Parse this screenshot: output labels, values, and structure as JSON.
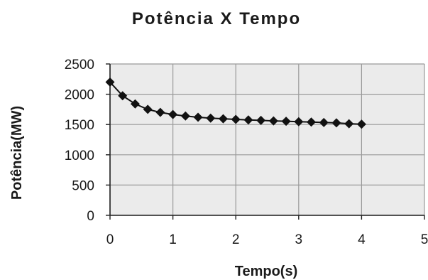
{
  "chart_data": {
    "type": "line",
    "title": "Potência X Tempo",
    "xlabel": "Tempo(s)",
    "ylabel": "Potência(MW)",
    "xlim": [
      0,
      5
    ],
    "ylim": [
      0,
      2500
    ],
    "xticks": [
      "0",
      "1",
      "2",
      "3",
      "4",
      "5"
    ],
    "yticks": [
      "0",
      "500",
      "1000",
      "1500",
      "2000",
      "2500"
    ],
    "grid": true,
    "marker": "diamond",
    "series": [
      {
        "color": "#111111",
        "x": [
          0,
          0.2,
          0.4,
          0.6,
          0.8,
          1.0,
          1.2,
          1.4,
          1.6,
          1.8,
          2.0,
          2.2,
          2.4,
          2.6,
          2.8,
          3.0,
          3.2,
          3.4,
          3.6,
          3.8,
          4.0
        ],
        "y": [
          2200,
          1975,
          1840,
          1750,
          1700,
          1665,
          1640,
          1620,
          1605,
          1595,
          1585,
          1575,
          1568,
          1560,
          1553,
          1547,
          1540,
          1533,
          1527,
          1512,
          1505
        ]
      }
    ]
  },
  "colors": {
    "plot_background": "#ebebeb",
    "grid": "#9a9a9a",
    "axis": "#222222"
  }
}
